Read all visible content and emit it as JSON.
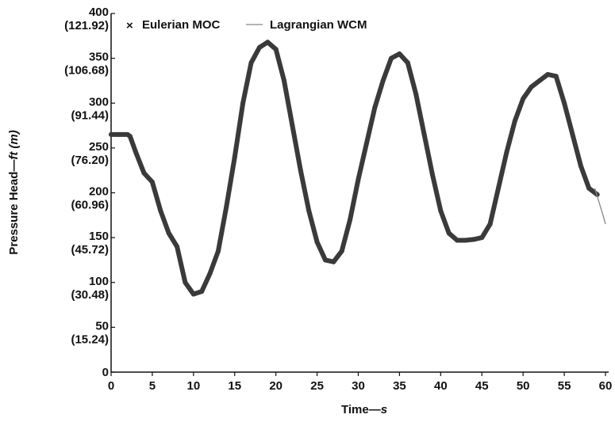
{
  "chart_data": {
    "type": "line",
    "xlabel": {
      "main": "Time—",
      "unit": "s"
    },
    "ylabel": {
      "main": "Pressure Head—",
      "unit": "ft",
      "alt_unit": "(m)"
    },
    "xlim": [
      0,
      60
    ],
    "ylim": [
      0,
      400
    ],
    "x_ticks": [
      "0",
      "5",
      "10",
      "15",
      "20",
      "25",
      "30",
      "35",
      "40",
      "45",
      "50",
      "55",
      "60"
    ],
    "y_ticks": [
      {
        "value": 0,
        "ft": "0",
        "m": ""
      },
      {
        "value": 50,
        "ft": "50",
        "m": "(15.24)"
      },
      {
        "value": 100,
        "ft": "100",
        "m": "(30.48)"
      },
      {
        "value": 150,
        "ft": "150",
        "m": "(45.72)"
      },
      {
        "value": 200,
        "ft": "200",
        "m": "(60.96)"
      },
      {
        "value": 250,
        "ft": "250",
        "m": "(76.20)"
      },
      {
        "value": 300,
        "ft": "300",
        "m": "(91.44)"
      },
      {
        "value": 350,
        "ft": "350",
        "m": "(106.68)"
      },
      {
        "value": 400,
        "ft": "400",
        "m": "(121.92)"
      }
    ],
    "legend_position": "top-left",
    "grid": false,
    "series": [
      {
        "name": "Eulerian MOC",
        "marker": "×",
        "color": "#3a3a3a",
        "x": [
          0,
          1,
          2,
          2.3,
          3,
          4,
          5,
          6,
          7,
          8,
          9,
          10,
          11,
          12,
          13,
          14,
          15,
          16,
          17,
          18,
          19,
          20,
          21,
          22,
          23,
          24,
          25,
          26,
          27,
          28,
          29,
          30,
          31,
          32,
          33,
          34,
          35,
          36,
          37,
          38,
          39,
          40,
          41,
          42,
          43,
          44,
          45,
          46,
          47,
          48,
          49,
          50,
          51,
          52,
          53,
          54,
          55,
          56,
          57,
          58,
          59
        ],
        "y": [
          265,
          265,
          265,
          263,
          245,
          222,
          212,
          180,
          155,
          140,
          100,
          87,
          90,
          110,
          135,
          185,
          240,
          300,
          345,
          362,
          368,
          360,
          325,
          275,
          225,
          180,
          145,
          125,
          123,
          135,
          170,
          215,
          255,
          295,
          325,
          350,
          355,
          345,
          310,
          265,
          220,
          180,
          155,
          147,
          147,
          148,
          150,
          165,
          205,
          245,
          280,
          305,
          318,
          325,
          332,
          330,
          300,
          265,
          230,
          205,
          198
        ]
      },
      {
        "name": "Lagrangian WCM",
        "color": "#888888",
        "x": [
          58.7,
          59.2,
          59.7,
          60
        ],
        "y": [
          205,
          190,
          175,
          165
        ]
      }
    ]
  }
}
